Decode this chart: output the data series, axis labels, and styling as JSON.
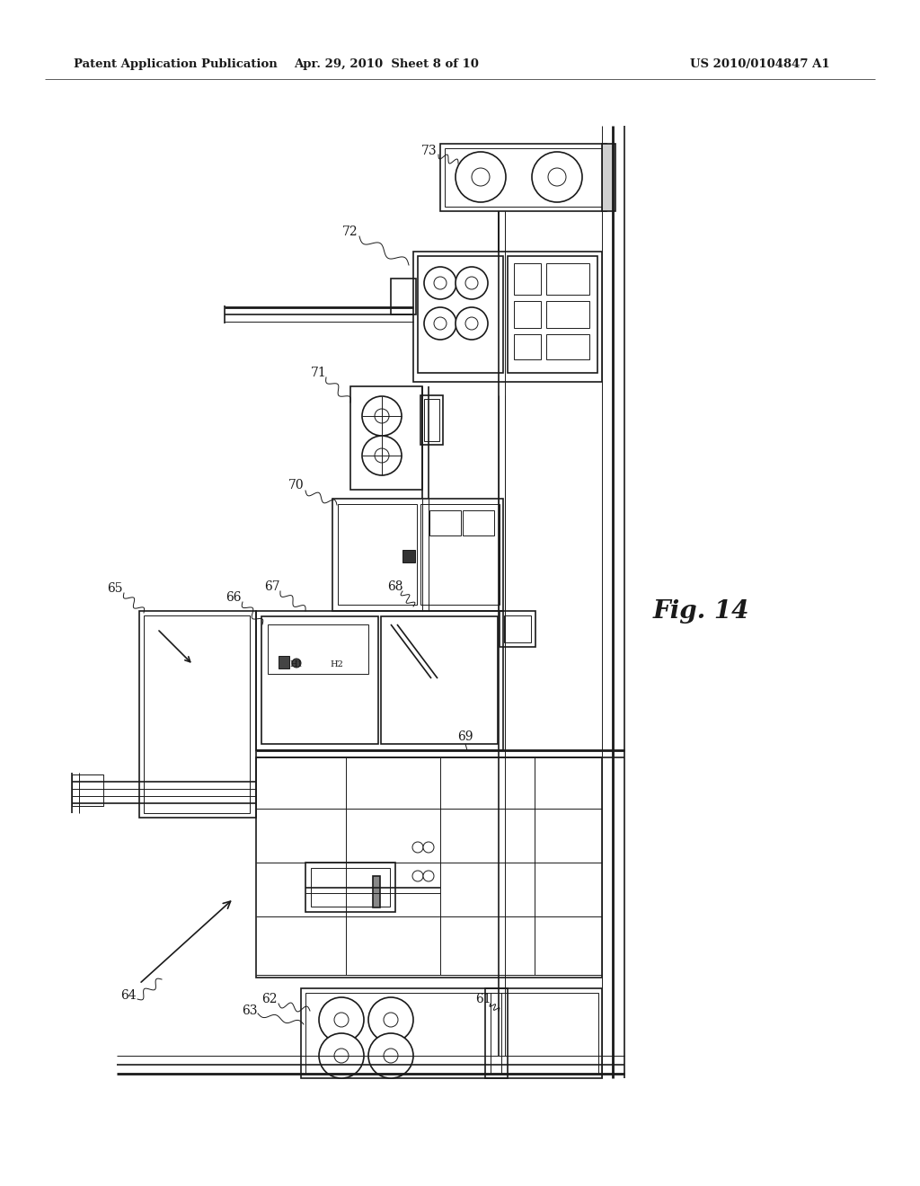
{
  "background_color": "#ffffff",
  "header_left": "Patent Application Publication",
  "header_center": "Apr. 29, 2010  Sheet 8 of 10",
  "header_right": "US 2010/0104847 A1",
  "fig_label": "Fig. 14",
  "header_fontsize": 9.5,
  "fig_label_fontsize": 20,
  "label_fontsize": 10,
  "line_color": "#1a1a1a",
  "lw_thin": 0.7,
  "lw_med": 1.2,
  "lw_thick": 2.0,
  "lw_xthick": 3.0
}
